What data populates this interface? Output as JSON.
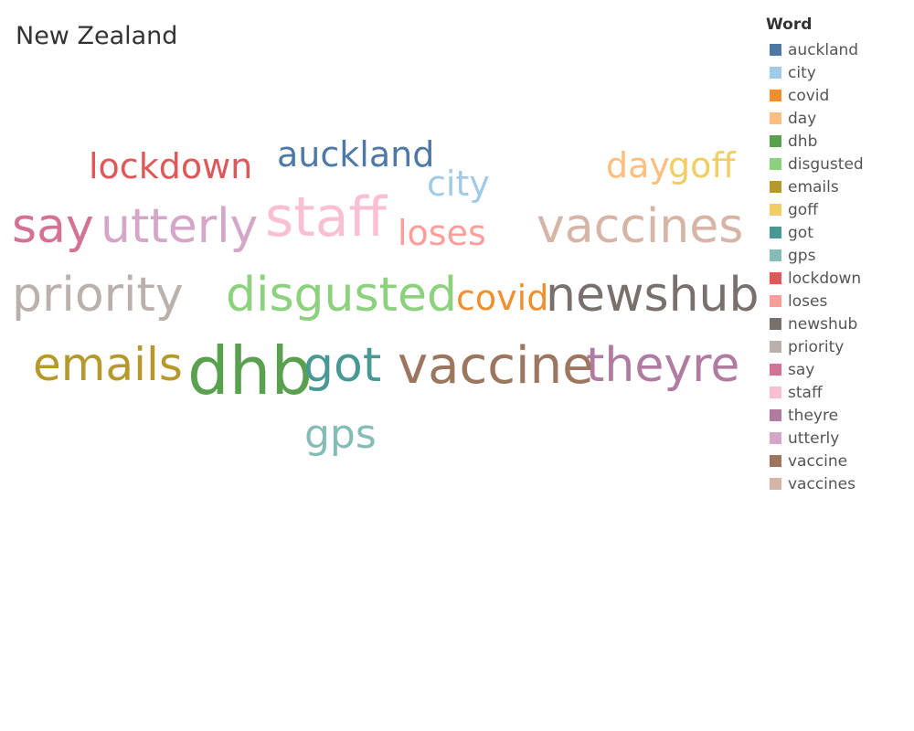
{
  "chart_data": {
    "type": "word-cloud",
    "title": "New Zealand",
    "legend": {
      "title": "Word",
      "position": "right"
    },
    "words": [
      {
        "word": "auckland",
        "color": "#4e79a7",
        "weight": 38
      },
      {
        "word": "city",
        "color": "#a0cbe8",
        "weight": 38
      },
      {
        "word": "covid",
        "color": "#f28e2b",
        "weight": 38
      },
      {
        "word": "day",
        "color": "#ffbe7d",
        "weight": 38
      },
      {
        "word": "dhb",
        "color": "#59a14f",
        "weight": 72
      },
      {
        "word": "disgusted",
        "color": "#8cd17d",
        "weight": 52
      },
      {
        "word": "emails",
        "color": "#b6992d",
        "weight": 50
      },
      {
        "word": "goff",
        "color": "#f1ce63",
        "weight": 38
      },
      {
        "word": "got",
        "color": "#499894",
        "weight": 52
      },
      {
        "word": "gps",
        "color": "#86bcb6",
        "weight": 44
      },
      {
        "word": "lockdown",
        "color": "#e15759",
        "weight": 38
      },
      {
        "word": "loses",
        "color": "#ff9d9a",
        "weight": 38
      },
      {
        "word": "newshub",
        "color": "#79706e",
        "weight": 52
      },
      {
        "word": "priority",
        "color": "#bab0ac",
        "weight": 52
      },
      {
        "word": "say",
        "color": "#d37295",
        "weight": 52
      },
      {
        "word": "staff",
        "color": "#fabfd2",
        "weight": 60
      },
      {
        "word": "theyre",
        "color": "#b07aa1",
        "weight": 52
      },
      {
        "word": "utterly",
        "color": "#d4a6c8",
        "weight": 52
      },
      {
        "word": "vaccine",
        "color": "#9d7660",
        "weight": 56
      },
      {
        "word": "vaccines",
        "color": "#d7b5a6",
        "weight": 52
      }
    ]
  }
}
